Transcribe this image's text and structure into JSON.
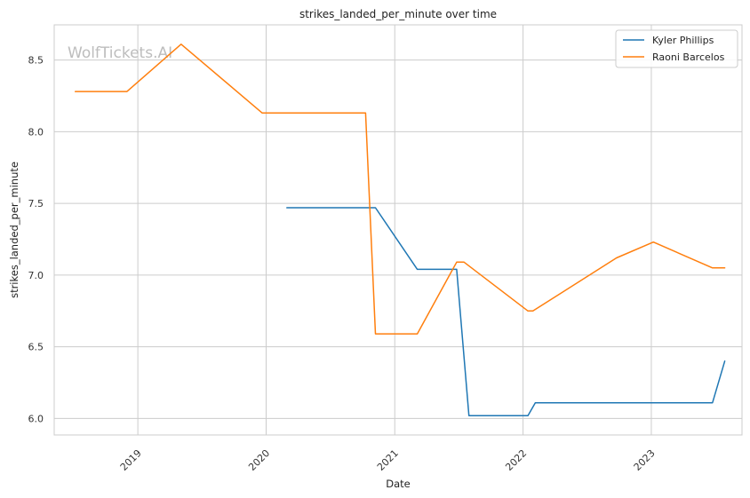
{
  "chart_data": {
    "type": "line",
    "title": "strikes_landed_per_minute over time",
    "xlabel": "Date",
    "ylabel": "strikes_landed_per_minute",
    "watermark": "WolfTickets.AI",
    "x_ticks": [
      "2019",
      "2020",
      "2021",
      "2022",
      "2023"
    ],
    "x_range": [
      "2018-05-08",
      "2023-09-16"
    ],
    "y_ticks": [
      "6.0",
      "6.5",
      "7.0",
      "7.5",
      "8.0",
      "8.5"
    ],
    "ylim": [
      5.885,
      8.745
    ],
    "grid": true,
    "legend_position": "top-right",
    "series": [
      {
        "name": "Kyler Phillips",
        "color": "#1f77b4",
        "points": [
          [
            "2020-02-29",
            7.47
          ],
          [
            "2020-11-07",
            7.47
          ],
          [
            "2021-03-06",
            7.04
          ],
          [
            "2021-06-26",
            7.04
          ],
          [
            "2021-07-31",
            6.02
          ],
          [
            "2022-01-15",
            6.02
          ],
          [
            "2022-02-05",
            6.11
          ],
          [
            "2023-06-24",
            6.11
          ],
          [
            "2023-07-29",
            6.4
          ]
        ]
      },
      {
        "name": "Raoni Barcelos",
        "color": "#ff7f0e",
        "points": [
          [
            "2018-07-07",
            8.28
          ],
          [
            "2018-12-01",
            8.28
          ],
          [
            "2019-05-04",
            8.61
          ],
          [
            "2019-12-21",
            8.13
          ],
          [
            "2020-10-10",
            8.13
          ],
          [
            "2020-11-07",
            6.59
          ],
          [
            "2021-03-06",
            6.59
          ],
          [
            "2021-06-26",
            7.09
          ],
          [
            "2021-07-17",
            7.09
          ],
          [
            "2022-01-15",
            6.75
          ],
          [
            "2022-01-29",
            6.75
          ],
          [
            "2022-09-24",
            7.12
          ],
          [
            "2023-01-07",
            7.23
          ],
          [
            "2023-06-24",
            7.05
          ],
          [
            "2023-07-29",
            7.05
          ]
        ]
      }
    ]
  }
}
